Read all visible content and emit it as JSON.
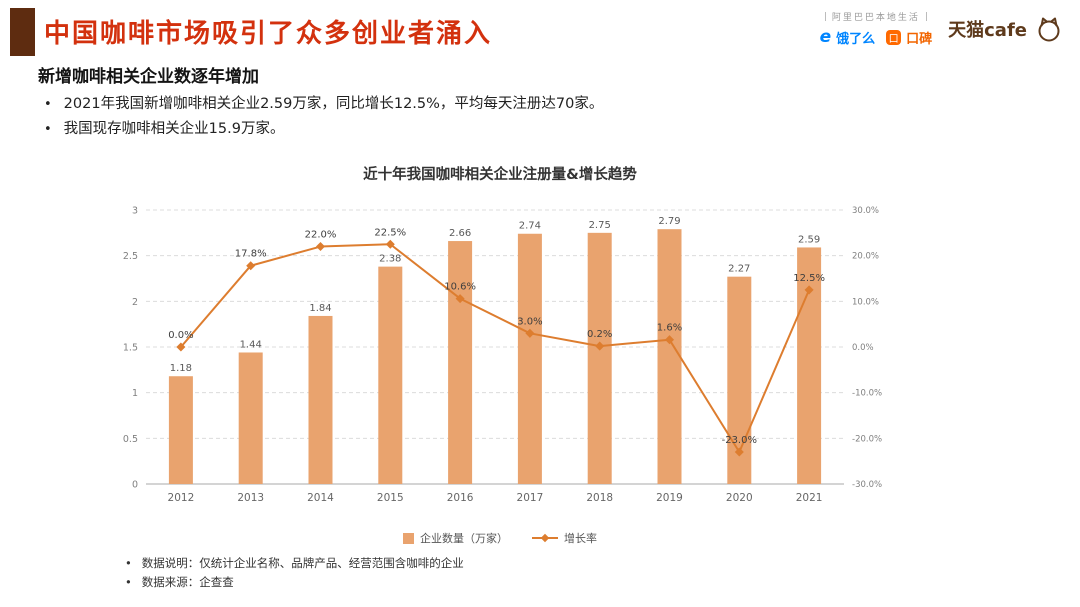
{
  "page": {
    "title": "中国咖啡市场吸引了众多创业者涌入",
    "subtitle": "新增咖啡相关企业数逐年增加",
    "bullet_glyph": "•",
    "bullets": [
      "2021年我国新增咖啡相关企业2.59万家，同比增长12.5%，平均每天注册达70家。",
      "我国现存咖啡相关企业15.9万家。"
    ],
    "footnotes": [
      "数据说明：仅统计企业名称、品牌产品、经营范围含咖啡的企业",
      "数据来源：企查查"
    ]
  },
  "logos": {
    "alibaba_local_life": "阿里巴巴本地生活",
    "eleme_mark": "e",
    "eleme": "饿了么",
    "koubei_mark": "口",
    "koubei": "口碑",
    "tmall_cafe": "天猫cafe"
  },
  "colors": {
    "accent_block": "#5e2c10",
    "title_red": "#d3310e",
    "bar_orange": "#e9a36e",
    "line_orange": "#dd7d2f",
    "eleme_blue": "#0085ff",
    "koubei_orange": "#ff6900",
    "tmall_brown": "#5e3a1c",
    "grid_gray": "#dcdcdc",
    "axis_text_gray": "#808080"
  },
  "chart_data": {
    "type": "combo",
    "title": "近十年我国咖啡相关企业注册量&增长趋势",
    "categories": [
      "2012",
      "2013",
      "2014",
      "2015",
      "2016",
      "2017",
      "2018",
      "2019",
      "2020",
      "2021"
    ],
    "series": [
      {
        "name": "企业数量（万家）",
        "type": "bar",
        "axis": "left",
        "color": "#e9a36e",
        "values": [
          1.18,
          1.44,
          1.84,
          2.38,
          2.66,
          2.74,
          2.75,
          2.79,
          2.27,
          2.59
        ],
        "labels": [
          "1.18",
          "1.44",
          "1.84",
          "2.38",
          "2.66",
          "2.74",
          "2.75",
          "2.79",
          "2.27",
          "2.59"
        ]
      },
      {
        "name": "增长率",
        "type": "line",
        "axis": "right",
        "color": "#dd7d2f",
        "values": [
          0.0,
          17.8,
          22.0,
          22.5,
          10.6,
          3.0,
          0.2,
          1.6,
          -23.0,
          12.5
        ],
        "labels": [
          "0.0%",
          "17.8%",
          "22.0%",
          "22.5%",
          "10.6%",
          "3.0%",
          "0.2%",
          "1.6%",
          "-23.0%",
          "12.5%"
        ]
      }
    ],
    "left_axis": {
      "min": 0,
      "max": 3,
      "ticks": [
        0,
        0.5,
        1,
        1.5,
        2,
        2.5,
        3
      ],
      "tick_labels": [
        "0",
        "0.5",
        "1",
        "1.5",
        "2",
        "2.5",
        "3"
      ]
    },
    "right_axis": {
      "min": -30,
      "max": 30,
      "ticks": [
        30,
        20,
        10,
        0,
        -10,
        -20,
        -30
      ],
      "tick_labels": [
        "30.0%",
        "20.0%",
        "10.0%",
        "0.0%",
        "-10.0%",
        "-20.0%",
        "-30.0%"
      ]
    },
    "legend_position": "bottom",
    "grid": true
  }
}
